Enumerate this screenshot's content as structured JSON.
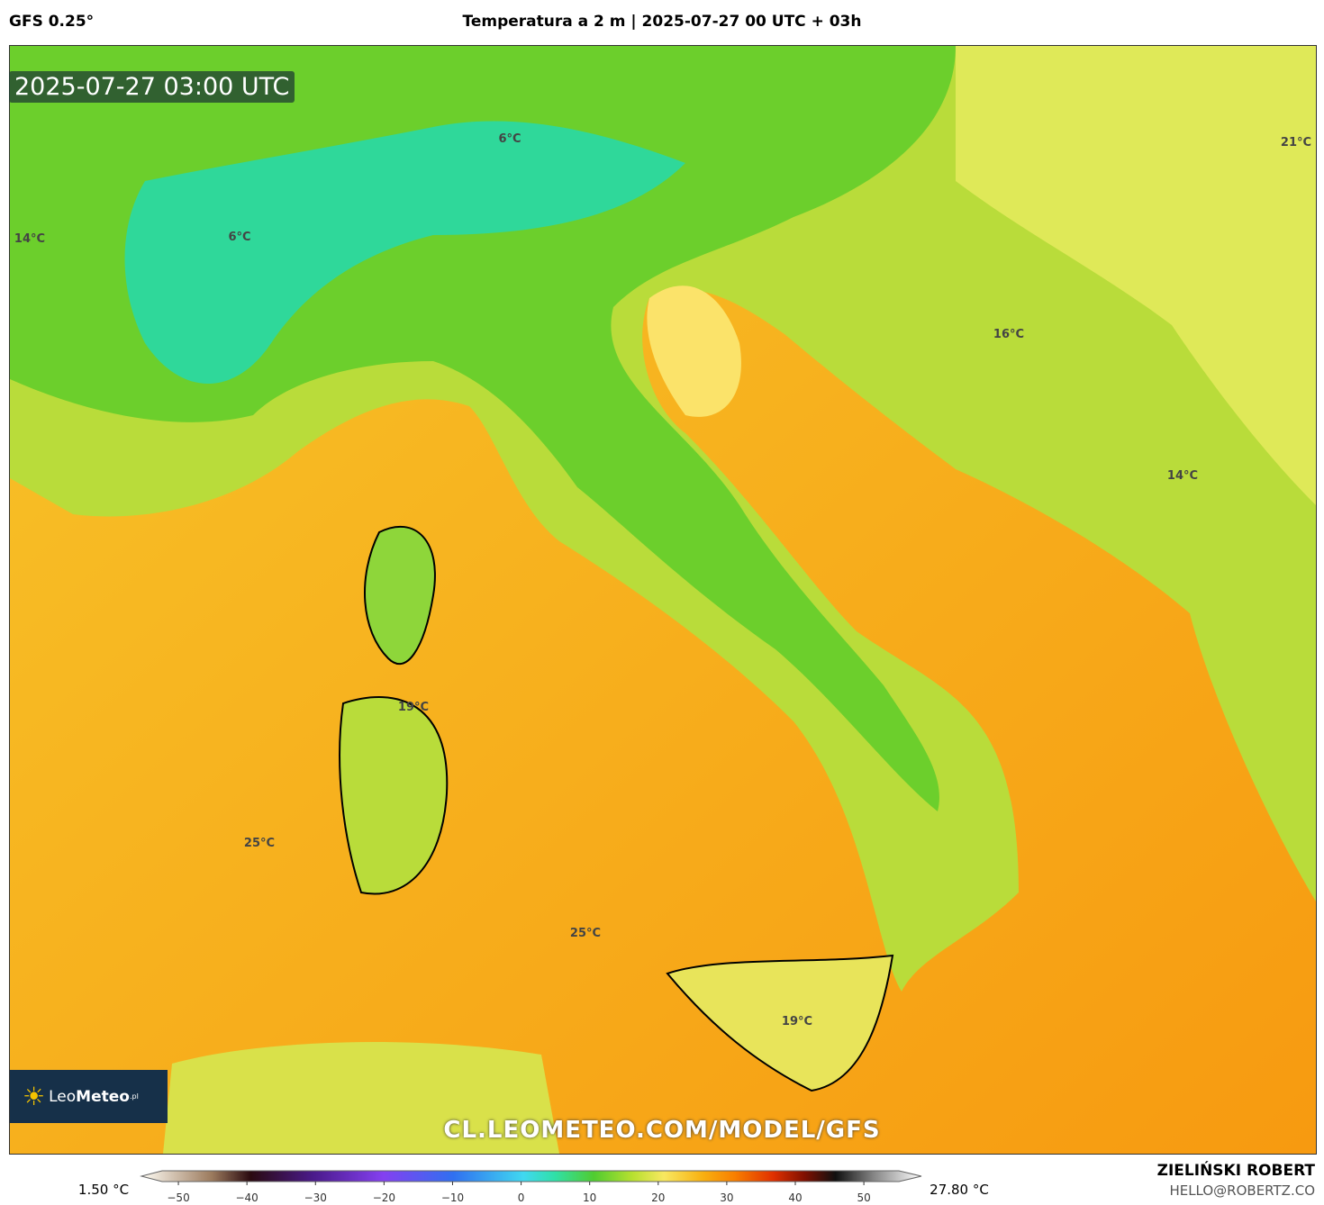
{
  "header": {
    "model": "GFS 0.25°",
    "title": "Temperatura a 2 m | 2025-07-27 00 UTC + 03h"
  },
  "timestamp": "2025-07-27 03:00 UTC",
  "map_labels": [
    "6°C",
    "6°C",
    "14°C",
    "21°C",
    "16°C",
    "14°C",
    "19°C",
    "25°C",
    "25°C",
    "19°C"
  ],
  "watermark": "CL.LEOMETEO.COM/MODEL/GFS",
  "logo": {
    "name": "Leo",
    "bold": "Meteo",
    "suffix": ".pl"
  },
  "colorbar": {
    "min_label": "1.50 °C",
    "max_label": "27.80 °C",
    "range": [
      -55,
      58
    ],
    "ticks": [
      {
        "value": -50,
        "label": "−50"
      },
      {
        "value": -40,
        "label": "−40"
      },
      {
        "value": -30,
        "label": "−30"
      },
      {
        "value": -20,
        "label": "−20"
      },
      {
        "value": -10,
        "label": "−10"
      },
      0,
      10,
      20,
      30,
      40,
      50
    ]
  },
  "credits": {
    "author": "ZIELIŃSKI ROBERT",
    "email": "HELLO@ROBERTZ.CO"
  }
}
